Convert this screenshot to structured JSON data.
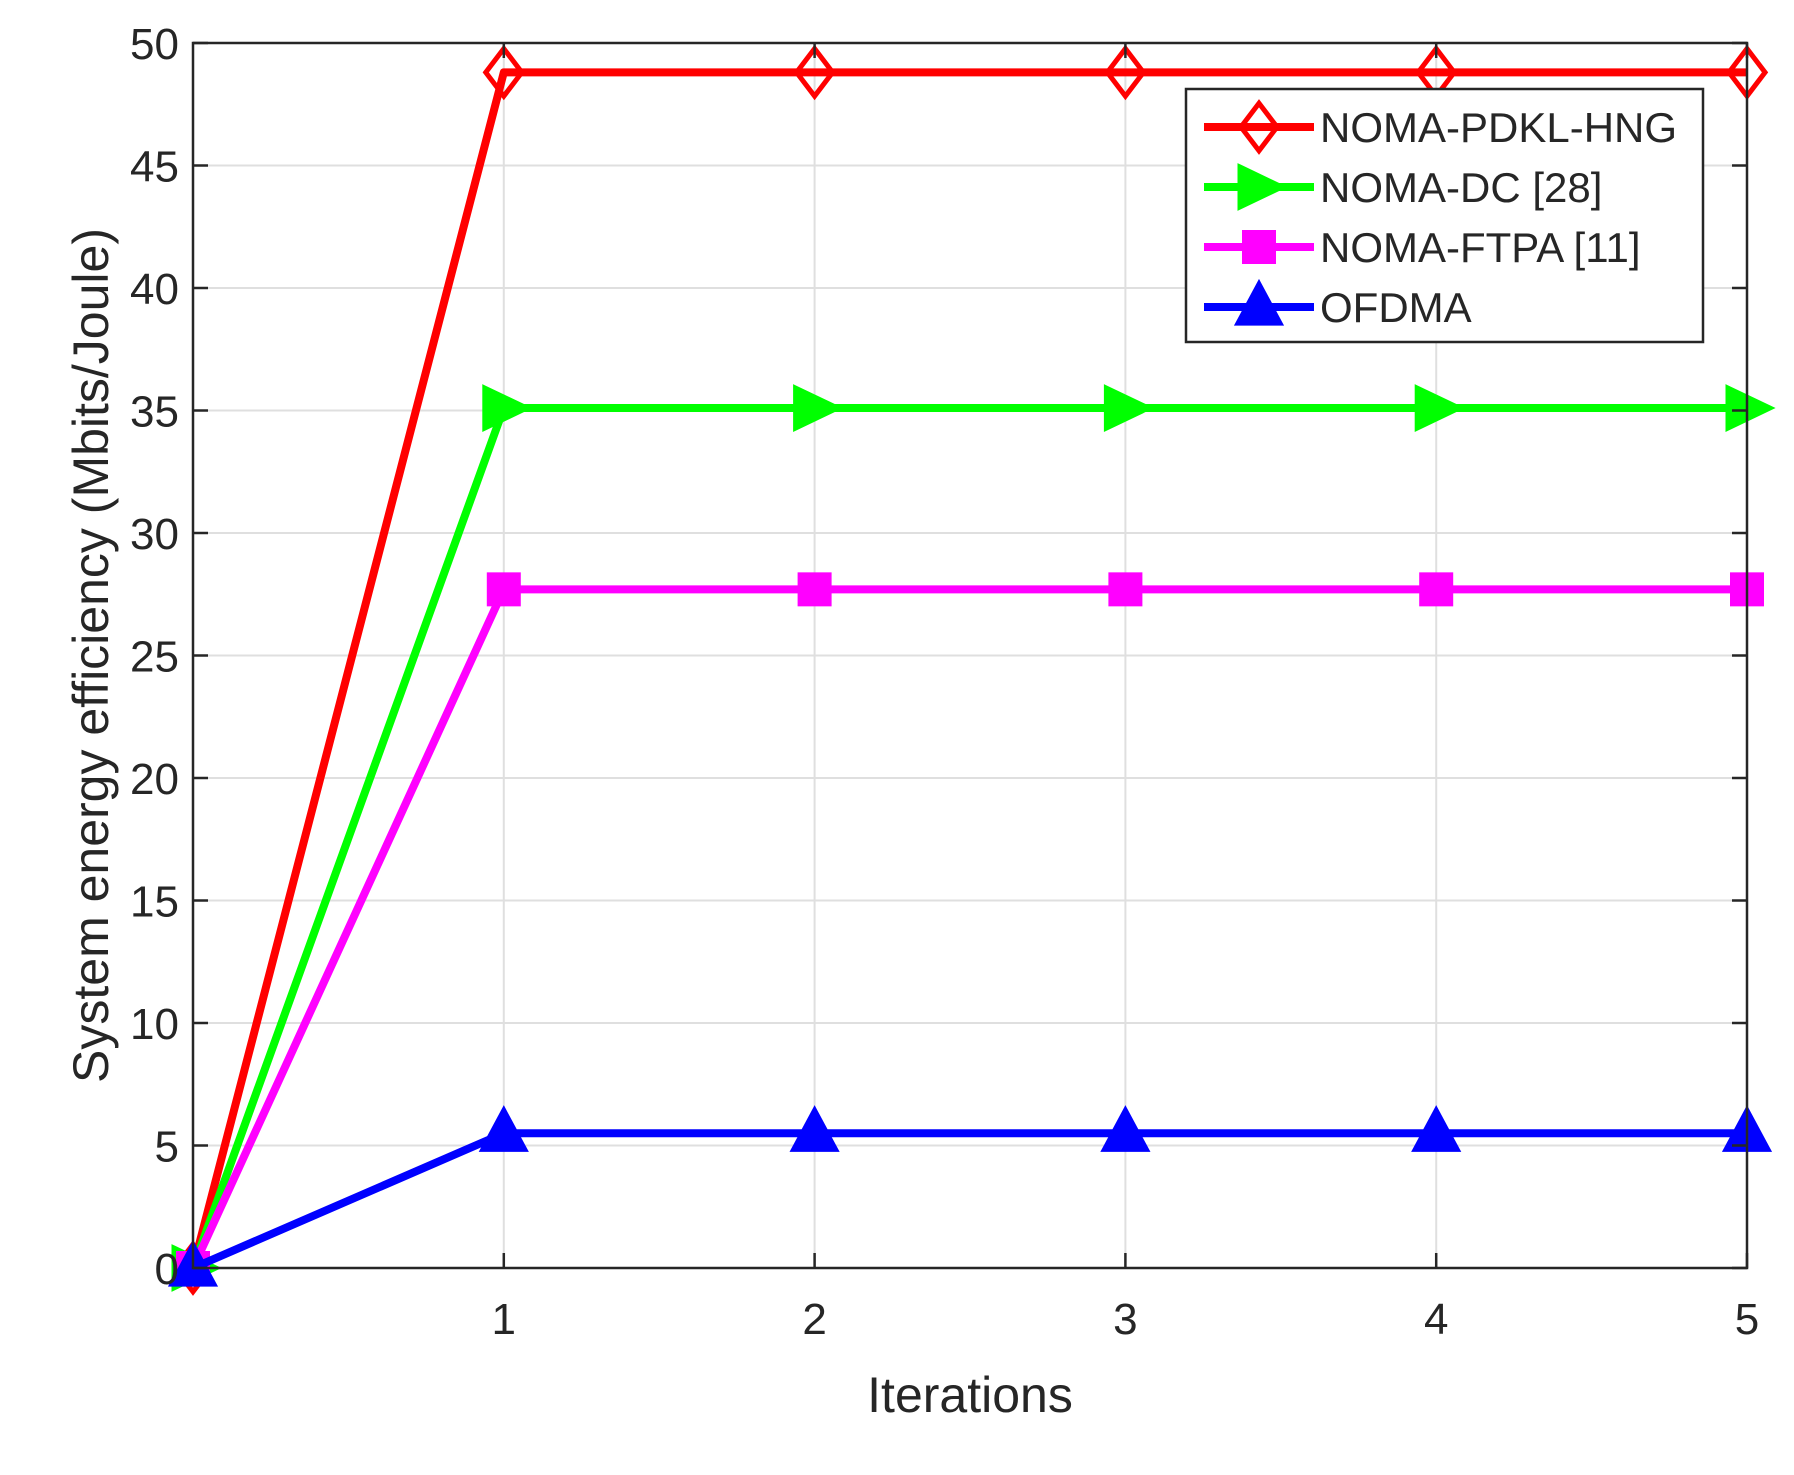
{
  "chart_data": {
    "type": "line",
    "title": "",
    "xlabel": "Iterations",
    "ylabel": "System energy efficiency (Mbits/Joule)",
    "xlim": [
      0,
      5
    ],
    "ylim": [
      0,
      50
    ],
    "xticks": [
      1,
      2,
      3,
      4,
      5
    ],
    "xtick_labels": [
      "1",
      "2",
      "3",
      "4",
      "5"
    ],
    "yticks": [
      0,
      5,
      10,
      15,
      20,
      25,
      30,
      35,
      40,
      45,
      50
    ],
    "ytick_labels": [
      "0",
      "5",
      "10",
      "15",
      "20",
      "25",
      "30",
      "35",
      "40",
      "45",
      "50"
    ],
    "grid": true,
    "legend_position": "top-right",
    "x": [
      0,
      1,
      2,
      3,
      4,
      5
    ],
    "series": [
      {
        "name": "NOMA-PDKL-HNG",
        "color": "#ff0000",
        "marker": "diamond",
        "values": [
          0,
          48.8,
          48.8,
          48.8,
          48.8,
          48.8
        ]
      },
      {
        "name": "NOMA-DC [28]",
        "color": "#00ff00",
        "marker": "triangle-right",
        "values": [
          0,
          35.1,
          35.1,
          35.1,
          35.1,
          35.1
        ]
      },
      {
        "name": "NOMA-FTPA [11]",
        "color": "#ff00ff",
        "marker": "square",
        "values": [
          0,
          27.7,
          27.7,
          27.7,
          27.7,
          27.7
        ]
      },
      {
        "name": "OFDMA",
        "color": "#0000ff",
        "marker": "triangle-up",
        "values": [
          0,
          5.5,
          5.5,
          5.5,
          5.5,
          5.5
        ]
      }
    ]
  }
}
